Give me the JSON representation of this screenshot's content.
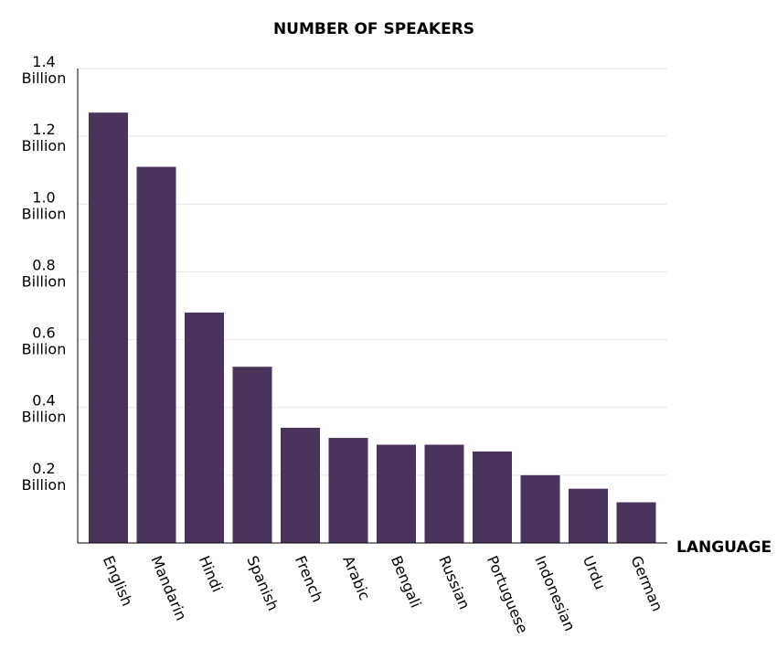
{
  "chart_data": {
    "type": "bar",
    "title": "NUMBER OF SPEAKERS",
    "xlabel": "LANGUAGE",
    "ylabel": "",
    "categories": [
      "English",
      "Mandarin",
      "Hindi",
      "Spanish",
      "French",
      "Arabic",
      "Bengali",
      "Russian",
      "Portuguese",
      "Indonesian",
      "Urdu",
      "German"
    ],
    "values": [
      1.27,
      1.11,
      0.68,
      0.52,
      0.34,
      0.31,
      0.29,
      0.29,
      0.27,
      0.2,
      0.16,
      0.12
    ],
    "ylim": [
      0,
      1.4
    ],
    "yticks": [
      0.2,
      0.4,
      0.6,
      0.8,
      1.0,
      1.2,
      1.4
    ],
    "ytick_labels": [
      [
        "0.2",
        "Billion"
      ],
      [
        "0.4",
        "Billion"
      ],
      [
        "0.6",
        "Billion"
      ],
      [
        "0.8",
        "Billion"
      ],
      [
        "1.0",
        "Billion"
      ],
      [
        "1.2",
        "Billion"
      ],
      [
        "1.4",
        "Billion"
      ]
    ],
    "grid": true,
    "legend": "none",
    "colors": {
      "bar": "#4a345c",
      "grid": "#e6e6e6",
      "axis": "#000000"
    }
  }
}
